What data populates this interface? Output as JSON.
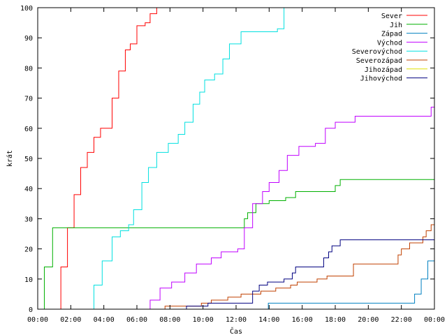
{
  "chart_data": {
    "type": "line",
    "title": "",
    "xlabel": "Čas",
    "ylabel": "krát",
    "xlim": [
      0,
      24
    ],
    "ylim": [
      0,
      100
    ],
    "x_ticks": [
      {
        "v": 0,
        "label": "00:00"
      },
      {
        "v": 2,
        "label": "02:00"
      },
      {
        "v": 4,
        "label": "04:00"
      },
      {
        "v": 6,
        "label": "06:00"
      },
      {
        "v": 8,
        "label": "08:00"
      },
      {
        "v": 10,
        "label": "10:00"
      },
      {
        "v": 12,
        "label": "12:00"
      },
      {
        "v": 14,
        "label": "14:00"
      },
      {
        "v": 16,
        "label": "16:00"
      },
      {
        "v": 18,
        "label": "18:00"
      },
      {
        "v": 20,
        "label": "20:00"
      },
      {
        "v": 22,
        "label": "22:00"
      },
      {
        "v": 24,
        "label": "00:00"
      }
    ],
    "y_ticks": [
      0,
      10,
      20,
      30,
      40,
      50,
      60,
      70,
      80,
      90,
      100
    ],
    "grid": false,
    "legend_position": "top-right",
    "series": [
      {
        "name": "Sever",
        "color": "#ff0000",
        "points": [
          [
            1.0,
            0
          ],
          [
            1.4,
            14
          ],
          [
            1.8,
            27
          ],
          [
            2.2,
            38
          ],
          [
            2.6,
            47
          ],
          [
            3.0,
            52
          ],
          [
            3.4,
            57
          ],
          [
            3.8,
            60
          ],
          [
            4.1,
            60
          ],
          [
            4.5,
            70
          ],
          [
            4.9,
            79
          ],
          [
            5.3,
            86
          ],
          [
            5.6,
            88
          ],
          [
            6.0,
            94
          ],
          [
            6.5,
            95
          ],
          [
            6.8,
            98
          ],
          [
            7.2,
            100
          ]
        ]
      },
      {
        "name": "Jih",
        "color": "#00b000",
        "points": [
          [
            0.0,
            0
          ],
          [
            0.4,
            14
          ],
          [
            0.9,
            27
          ],
          [
            12.2,
            27
          ],
          [
            12.5,
            30
          ],
          [
            12.7,
            32
          ],
          [
            13.2,
            35
          ],
          [
            14.0,
            36
          ],
          [
            15.0,
            37
          ],
          [
            15.6,
            39
          ],
          [
            18.0,
            41
          ],
          [
            18.3,
            43
          ],
          [
            24.0,
            43
          ]
        ]
      },
      {
        "name": "Západ",
        "color": "#0080c0",
        "points": [
          [
            13.9,
            0
          ],
          [
            13.95,
            2
          ],
          [
            22.2,
            2
          ],
          [
            22.8,
            5
          ],
          [
            23.2,
            10
          ],
          [
            23.6,
            16
          ],
          [
            24.0,
            17
          ]
        ]
      },
      {
        "name": "Východ",
        "color": "#c000ff",
        "points": [
          [
            6.3,
            0
          ],
          [
            6.8,
            3
          ],
          [
            7.4,
            7
          ],
          [
            8.1,
            9
          ],
          [
            8.9,
            12
          ],
          [
            9.6,
            15
          ],
          [
            10.5,
            17
          ],
          [
            11.1,
            19
          ],
          [
            12.1,
            20
          ],
          [
            12.5,
            27
          ],
          [
            13.0,
            35
          ],
          [
            13.6,
            39
          ],
          [
            14.0,
            42
          ],
          [
            14.6,
            46
          ],
          [
            15.1,
            51
          ],
          [
            15.8,
            54
          ],
          [
            16.8,
            55
          ],
          [
            17.4,
            60
          ],
          [
            18.0,
            62
          ],
          [
            19.2,
            64
          ],
          [
            23.6,
            64
          ],
          [
            23.8,
            67
          ],
          [
            24.0,
            68
          ]
        ]
      },
      {
        "name": "Severovýchod",
        "color": "#00e0e0",
        "points": [
          [
            2.9,
            0
          ],
          [
            3.4,
            8
          ],
          [
            3.9,
            16
          ],
          [
            4.5,
            24
          ],
          [
            5.0,
            26
          ],
          [
            5.5,
            28
          ],
          [
            5.8,
            33
          ],
          [
            6.3,
            42
          ],
          [
            6.7,
            47
          ],
          [
            7.2,
            52
          ],
          [
            7.9,
            55
          ],
          [
            8.5,
            58
          ],
          [
            8.9,
            62
          ],
          [
            9.4,
            68
          ],
          [
            9.8,
            72
          ],
          [
            10.1,
            76
          ],
          [
            10.7,
            78
          ],
          [
            11.2,
            83
          ],
          [
            11.6,
            88
          ],
          [
            12.3,
            92
          ],
          [
            14.5,
            93
          ],
          [
            14.9,
            100
          ]
        ]
      },
      {
        "name": "Severozápad",
        "color": "#c04000",
        "points": [
          [
            7.6,
            0
          ],
          [
            7.7,
            1
          ],
          [
            9.4,
            1
          ],
          [
            9.9,
            2
          ],
          [
            10.5,
            3
          ],
          [
            11.5,
            4
          ],
          [
            12.3,
            5
          ],
          [
            13.5,
            6
          ],
          [
            14.4,
            7
          ],
          [
            15.3,
            8
          ],
          [
            15.7,
            9
          ],
          [
            16.9,
            10
          ],
          [
            17.5,
            11
          ],
          [
            19.1,
            15
          ],
          [
            21.5,
            15
          ],
          [
            21.8,
            18
          ],
          [
            22.0,
            20
          ],
          [
            22.5,
            22
          ],
          [
            23.3,
            24
          ],
          [
            23.5,
            26
          ],
          [
            23.8,
            28
          ],
          [
            24.0,
            32
          ]
        ]
      },
      {
        "name": "Jihozápad",
        "color": "#e0e000",
        "points": []
      },
      {
        "name": "Jihovýchod",
        "color": "#000080",
        "points": [
          [
            8.8,
            0
          ],
          [
            9.0,
            1
          ],
          [
            10.0,
            1
          ],
          [
            10.3,
            2
          ],
          [
            12.6,
            2
          ],
          [
            13.0,
            6
          ],
          [
            13.4,
            8
          ],
          [
            13.9,
            9
          ],
          [
            14.9,
            10
          ],
          [
            15.4,
            12
          ],
          [
            15.6,
            14
          ],
          [
            17.0,
            14
          ],
          [
            17.3,
            17
          ],
          [
            17.6,
            19
          ],
          [
            17.8,
            21
          ],
          [
            18.3,
            23
          ],
          [
            24.0,
            23
          ]
        ]
      }
    ]
  }
}
